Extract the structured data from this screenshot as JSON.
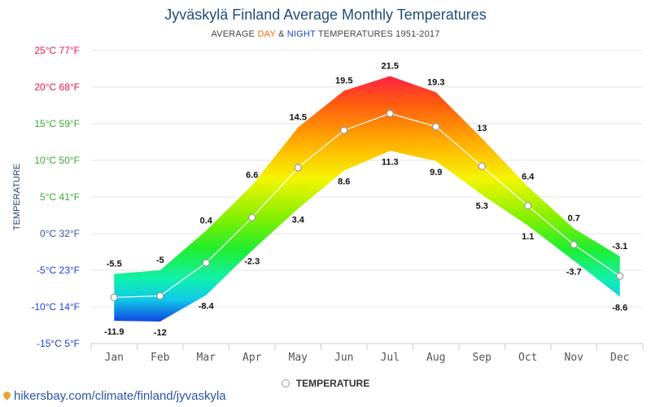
{
  "title": "Jyväskylä Finland Average Monthly Temperatures",
  "subtitle": {
    "prefix": "AVERAGE ",
    "day": "DAY",
    "amp": " & ",
    "night": "NIGHT",
    "suffix": " TEMPERATURES 1951-2017"
  },
  "source": "hikersbay.com/climate/finland/jyvaskyla",
  "legend": {
    "label": "TEMPERATURE"
  },
  "colors": {
    "title": "#1f4e79",
    "day": "#ff6a00",
    "night": "#2040d0"
  },
  "chart_data": {
    "type": "area",
    "ylabel": "TEMPERATURE",
    "ylim": [
      -15,
      25
    ],
    "grid": true,
    "legend_position": "bottom-center",
    "y_ticks": [
      {
        "value": 25,
        "label": "25°C 77°F"
      },
      {
        "value": 20,
        "label": "20°C 68°F"
      },
      {
        "value": 15,
        "label": "15°C 59°F"
      },
      {
        "value": 10,
        "label": "10°C 50°F"
      },
      {
        "value": 5,
        "label": "5°C 41°F"
      },
      {
        "value": 0,
        "label": "0°C 32°F"
      },
      {
        "value": -5,
        "label": "-5°C 23°F"
      },
      {
        "value": -10,
        "label": "-10°C 14°F"
      },
      {
        "value": -15,
        "label": "-15°C 5°F"
      }
    ],
    "categories": [
      "Jan",
      "Feb",
      "Mar",
      "Apr",
      "May",
      "Jun",
      "Jul",
      "Aug",
      "Sep",
      "Oct",
      "Nov",
      "Dec"
    ],
    "series": [
      {
        "name": "DAY",
        "values": [
          -5.5,
          -5,
          0.4,
          6.6,
          14.5,
          19.5,
          21.5,
          19.3,
          13,
          6.4,
          0.7,
          -3.1
        ]
      },
      {
        "name": "NIGHT",
        "values": [
          -11.9,
          -12,
          -8.4,
          -2.3,
          3.4,
          8.6,
          11.3,
          9.9,
          5.3,
          1.1,
          -3.7,
          -8.6
        ]
      },
      {
        "name": "TEMPERATURE",
        "values": [
          -8.7,
          -8.5,
          -4,
          2.2,
          9,
          14.1,
          16.4,
          14.6,
          9.2,
          3.8,
          -1.5,
          -5.8
        ]
      }
    ]
  }
}
